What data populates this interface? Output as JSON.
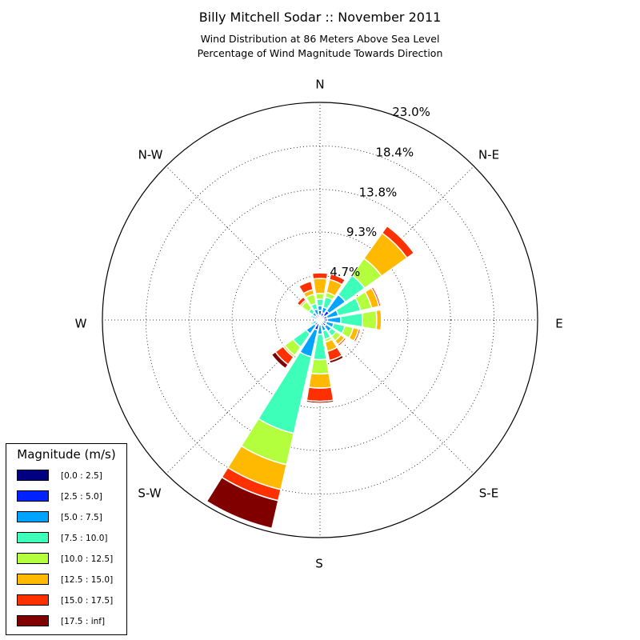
{
  "chart_title": "Billy Mitchell Sodar :: November 2011",
  "chart_subtitle_1": "Wind Distribution at 86 Meters Above Sea Level",
  "chart_subtitle_2": "Percentage of Wind Magnitude Towards Direction",
  "chart_data": {
    "type": "windrose",
    "title": "Billy Mitchell Sodar :: November 2011",
    "subtitle": [
      "Wind Distribution at 86 Meters Above Sea Level",
      "Percentage of Wind Magnitude Towards Direction"
    ],
    "direction_labels": [
      "N",
      "N-E",
      "E",
      "S-E",
      "S",
      "S-W",
      "W",
      "N-W"
    ],
    "radial_ticks": [
      4.7,
      9.3,
      13.8,
      18.4,
      23.0
    ],
    "radial_tick_labels": [
      "4.7%",
      "9.3%",
      "13.8%",
      "18.4%",
      "23.0%"
    ],
    "rmax": 23.0,
    "grid": true,
    "legend_title": "Magnitude (m/s)",
    "legend_placement": "lower-left",
    "bins": [
      "[0.0 : 2.5]",
      "[2.5 : 5.0]",
      "[5.0 : 7.5]",
      "[7.5 : 10.0]",
      "[10.0 : 12.5]",
      "[12.5 : 15.0]",
      "[15.0 : 17.5]",
      "[17.5 : inf]"
    ],
    "bin_colors": [
      "#000080",
      "#0022ff",
      "#00a4ff",
      "#3dffba",
      "#b3ff3d",
      "#ffb900",
      "#ff3000",
      "#800000"
    ],
    "directions_deg": [
      0,
      22.5,
      45,
      67.5,
      90,
      112.5,
      135,
      157.5,
      180,
      202.5,
      225,
      247.5,
      270,
      292.5,
      315,
      337.5
    ],
    "cumulative": [
      [
        0.5,
        1.0,
        1.5,
        2.2,
        2.8,
        4.4,
        5.0,
        5.1
      ],
      [
        0.3,
        0.8,
        1.4,
        2.5,
        3.0,
        4.4,
        5.0,
        5.0
      ],
      [
        0.6,
        1.2,
        3.3,
        5.8,
        8.0,
        11.3,
        12.2,
        12.2
      ],
      [
        0.4,
        0.8,
        2.0,
        4.4,
        5.6,
        6.4,
        6.6,
        6.6
      ],
      [
        0.4,
        0.8,
        2.2,
        4.5,
        6.0,
        6.5,
        6.5,
        6.5
      ],
      [
        0.3,
        0.7,
        1.5,
        2.7,
        3.6,
        4.2,
        4.4,
        4.4
      ],
      [
        0.3,
        0.8,
        1.5,
        2.1,
        2.7,
        3.2,
        3.4,
        3.4
      ],
      [
        0.3,
        0.6,
        1.2,
        2.1,
        2.4,
        3.4,
        4.4,
        4.7
      ],
      [
        0.2,
        0.5,
        1.5,
        4.2,
        5.7,
        7.2,
        8.6,
        8.8
      ],
      [
        0.4,
        1.1,
        4.0,
        12.3,
        15.7,
        18.4,
        19.6,
        22.6
      ],
      [
        0.3,
        0.7,
        1.8,
        3.5,
        4.6,
        4.8,
        5.8,
        6.3
      ],
      [
        0.2,
        0.4,
        0.8,
        1.0,
        1.0,
        1.0,
        1.0,
        1.0
      ],
      [
        0.2,
        0.4,
        0.5,
        0.6,
        0.6,
        0.6,
        0.6,
        0.6
      ],
      [
        0.3,
        0.6,
        0.8,
        1.0,
        1.0,
        1.0,
        1.0,
        1.0
      ],
      [
        0.3,
        0.6,
        1.0,
        1.5,
        2.4,
        2.6,
        3.0,
        3.0
      ],
      [
        0.3,
        0.6,
        1.2,
        1.8,
        2.8,
        3.3,
        4.2,
        4.2
      ]
    ]
  }
}
